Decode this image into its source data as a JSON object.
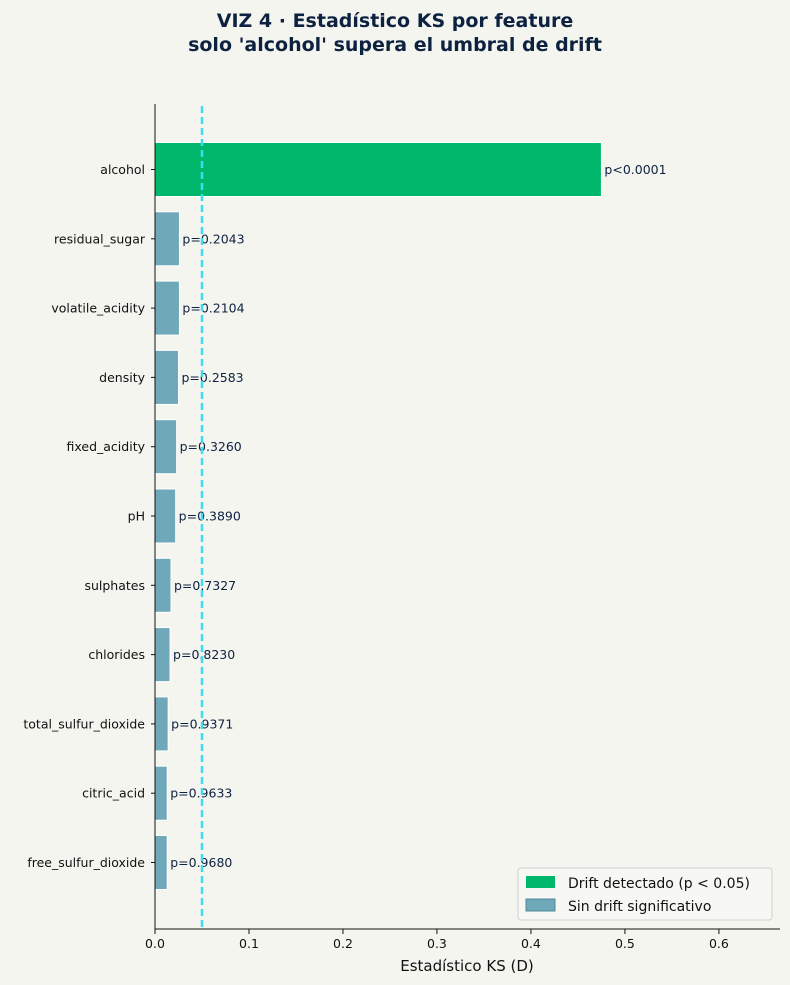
{
  "chart_data": {
    "type": "bar",
    "orientation": "horizontal",
    "title": "VIZ 4 · Estadístico KS por feature",
    "subtitle": "solo 'alcohol' supera el umbral de drift",
    "xlabel": "Estadístico KS (D)",
    "ylabel": "",
    "xlim": [
      0,
      0.665
    ],
    "xticks": [
      "0.0",
      "0.1",
      "0.2",
      "0.3",
      "0.4",
      "0.5",
      "0.6"
    ],
    "threshold": 0.05,
    "categories": [
      "alcohol",
      "residual_sugar",
      "volatile_acidity",
      "density",
      "fixed_acidity",
      "pH",
      "sulphates",
      "chlorides",
      "total_sulfur_dioxide",
      "citric_acid",
      "free_sulfur_dioxide"
    ],
    "values": [
      0.475,
      0.026,
      0.026,
      0.025,
      0.023,
      0.022,
      0.017,
      0.016,
      0.014,
      0.013,
      0.013
    ],
    "drift": [
      true,
      false,
      false,
      false,
      false,
      false,
      false,
      false,
      false,
      false,
      false
    ],
    "p_labels": [
      "p<0.0001",
      "p=0.2043",
      "p=0.2104",
      "p=0.2583",
      "p=0.3260",
      "p=0.3890",
      "p=0.7327",
      "p=0.8230",
      "p=0.9371",
      "p=0.9633",
      "p=0.9680"
    ],
    "legend": {
      "placement": "bottom-right",
      "entries": [
        {
          "label": "Drift detectado (p < 0.05)",
          "color": "#00b86b"
        },
        {
          "label": "Sin drift significativo",
          "color": "#6fa8b8"
        }
      ]
    },
    "colors": {
      "drift": "#00b86b",
      "no_drift": "#6fa8b8",
      "threshold": "#3ddcf0",
      "title": "#0d2240",
      "background": "#f5f5f0"
    },
    "grid": false
  }
}
